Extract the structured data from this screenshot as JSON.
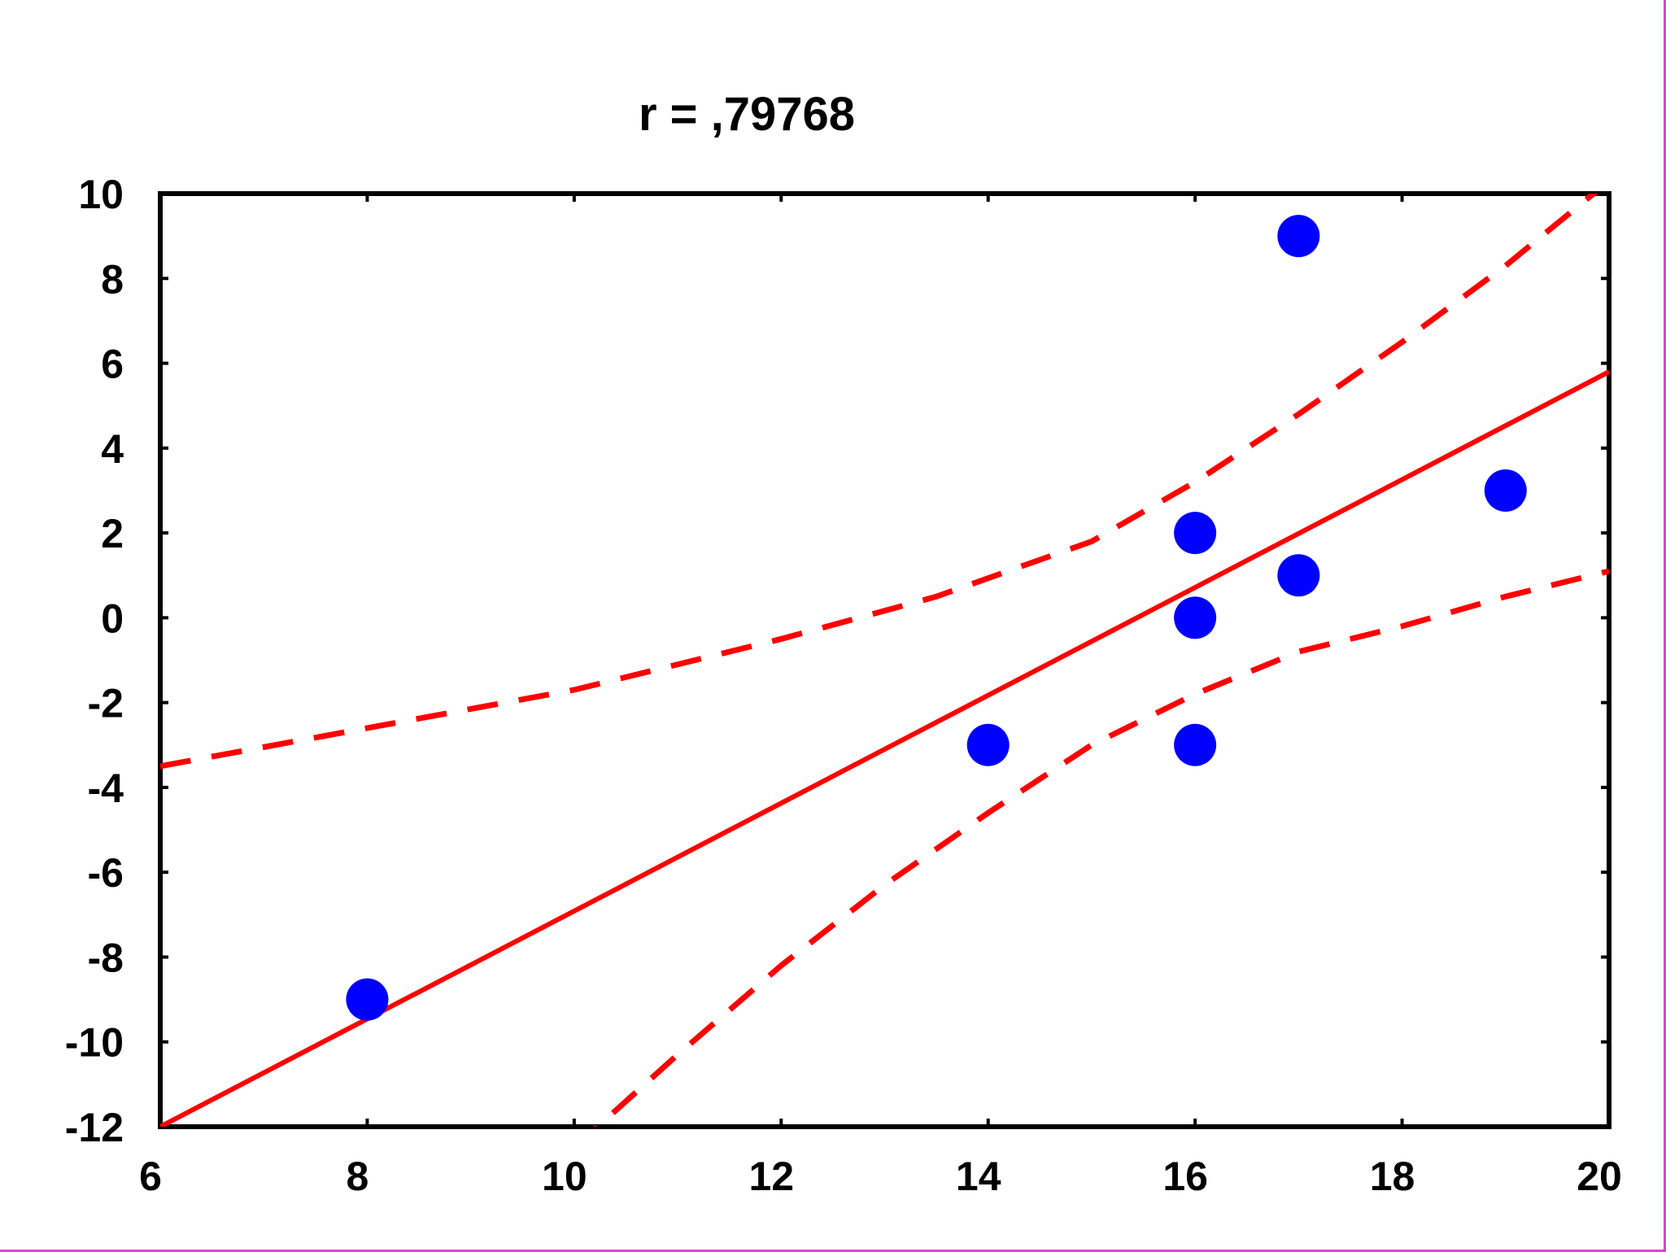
{
  "chart_data": {
    "type": "scatter",
    "title": "r = ,79768",
    "xlabel": "",
    "ylabel": "",
    "xlim": [
      6,
      20
    ],
    "ylim": [
      -12,
      10
    ],
    "x_ticks": [
      "6",
      "8",
      "10",
      "12",
      "14",
      "16",
      "18",
      "20"
    ],
    "y_ticks": [
      "10",
      "8",
      "6",
      "4",
      "2",
      "0",
      "-2",
      "-4",
      "-6",
      "-8",
      "-10",
      "-12"
    ],
    "grid": false,
    "legend": "none",
    "points": [
      {
        "x": 8,
        "y": -9
      },
      {
        "x": 14,
        "y": -3
      },
      {
        "x": 16,
        "y": 2
      },
      {
        "x": 16,
        "y": 0
      },
      {
        "x": 16,
        "y": -3
      },
      {
        "x": 17,
        "y": 9
      },
      {
        "x": 17,
        "y": 1
      },
      {
        "x": 19,
        "y": 3
      }
    ],
    "regression_line": {
      "x": [
        6,
        20
      ],
      "y": [
        -12,
        5.8
      ]
    },
    "confidence_upper": {
      "x": [
        6,
        8,
        10,
        12,
        13.5,
        15,
        16,
        17,
        18,
        19,
        20
      ],
      "y": [
        -3.5,
        -2.6,
        -1.7,
        -0.5,
        0.5,
        1.8,
        3.2,
        4.8,
        6.5,
        8.3,
        10.3
      ]
    },
    "confidence_lower": {
      "x": [
        10,
        11,
        12,
        13,
        14,
        15,
        16,
        17,
        18,
        19,
        20
      ],
      "y": [
        -12.5,
        -10.3,
        -8.2,
        -6.3,
        -4.6,
        -3.0,
        -1.8,
        -0.8,
        -0.2,
        0.5,
        1.1
      ]
    },
    "colors": {
      "points": "#0000ff",
      "fit_line": "#ff0000",
      "frame": "#000000"
    }
  }
}
